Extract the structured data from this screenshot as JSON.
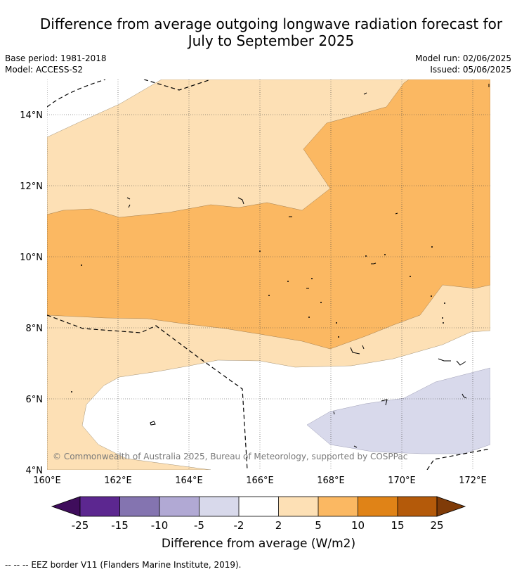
{
  "title_line1": "Difference from average outgoing longwave radiation forecast for",
  "title_line2": "July to September 2025",
  "meta": {
    "base_period": "Base period: 1981-2018",
    "model": "Model: ACCESS-S2",
    "model_run": "Model run: 02/06/2025",
    "issued": "Issued: 05/06/2025"
  },
  "map": {
    "lat_labels": [
      "14°N",
      "12°N",
      "10°N",
      "8°N",
      "6°N",
      "4°N"
    ],
    "lon_labels": [
      "160°E",
      "162°E",
      "164°E",
      "166°E",
      "168°E",
      "170°E",
      "172°E"
    ],
    "copyright": "© Commonwealth of Australia 2025, Bureau of Meteorology, supported by COSPPac",
    "colors": {
      "slight_positive": "#fde0b5",
      "moderate_positive": "#fbb862",
      "slight_negative": "#d8d9eb",
      "neutral": "#ffffff"
    }
  },
  "colorbar": {
    "ticks": [
      "-25",
      "-15",
      "-10",
      "-5",
      "-2",
      "2",
      "5",
      "10",
      "15",
      "25"
    ],
    "label": "Difference from average (W/m2)",
    "colors": [
      "#3f0d5c",
      "#5c2790",
      "#8474b0",
      "#b1a9d4",
      "#d8d9eb",
      "#ffffff",
      "#fde0b5",
      "#fbb862",
      "#e08317",
      "#b45a0a",
      "#7f3b08"
    ]
  },
  "footer": "--  --  -- EEZ border V11 (Flanders Marine Institute, 2019)."
}
